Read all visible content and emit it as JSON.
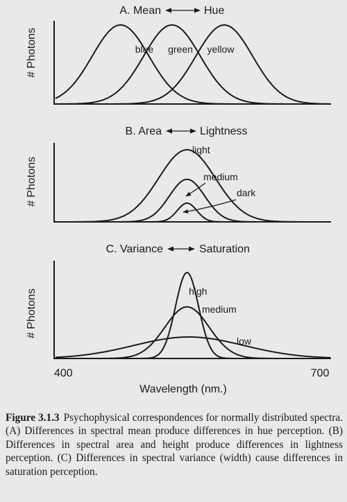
{
  "chart_data": [
    {
      "type": "line",
      "title_left": "A. Mean",
      "title_right": "Hue",
      "ylabel": "# Photons",
      "xlim": [
        400,
        700
      ],
      "series": [
        {
          "name": "blue",
          "mean": 475,
          "height": 1.0,
          "sd": 32
        },
        {
          "name": "green",
          "mean": 533,
          "height": 1.0,
          "sd": 32
        },
        {
          "name": "yellow",
          "mean": 592,
          "height": 1.0,
          "sd": 32
        }
      ]
    },
    {
      "type": "line",
      "title_left": "B. Area",
      "title_right": "Lightness",
      "ylabel": "# Photons",
      "xlim": [
        400,
        700
      ],
      "series": [
        {
          "name": "light",
          "mean": 550,
          "height": 1.0,
          "sd": 32
        },
        {
          "name": "medium",
          "mean": 550,
          "height": 0.59,
          "sd": 20
        },
        {
          "name": "dark",
          "mean": 550,
          "height": 0.26,
          "sd": 11
        }
      ]
    },
    {
      "type": "line",
      "title_left": "C. Variance",
      "title_right": "Saturation",
      "ylabel": "# Photons",
      "xlim": [
        400,
        700
      ],
      "series": [
        {
          "name": "high",
          "mean": 550,
          "height": 1.0,
          "sd": 13
        },
        {
          "name": "medium",
          "mean": 550,
          "height": 0.6,
          "sd": 25
        },
        {
          "name": "low",
          "mean": 552,
          "height": 0.25,
          "sd": 62
        }
      ]
    }
  ],
  "x_axis": {
    "ticks": [
      "400",
      "700"
    ],
    "xlabel": "Wavelength (nm.)"
  },
  "caption": {
    "label": "Figure 3.1.3",
    "text": "Psychophysical correspondences for normally distributed spectra. (A) Differences in spectral mean produce differences in hue perception. (B) Differences in spectral area and height produce differences in lightness perception. (C) Differences in spectral variance (width) cause differences in saturation perception."
  }
}
